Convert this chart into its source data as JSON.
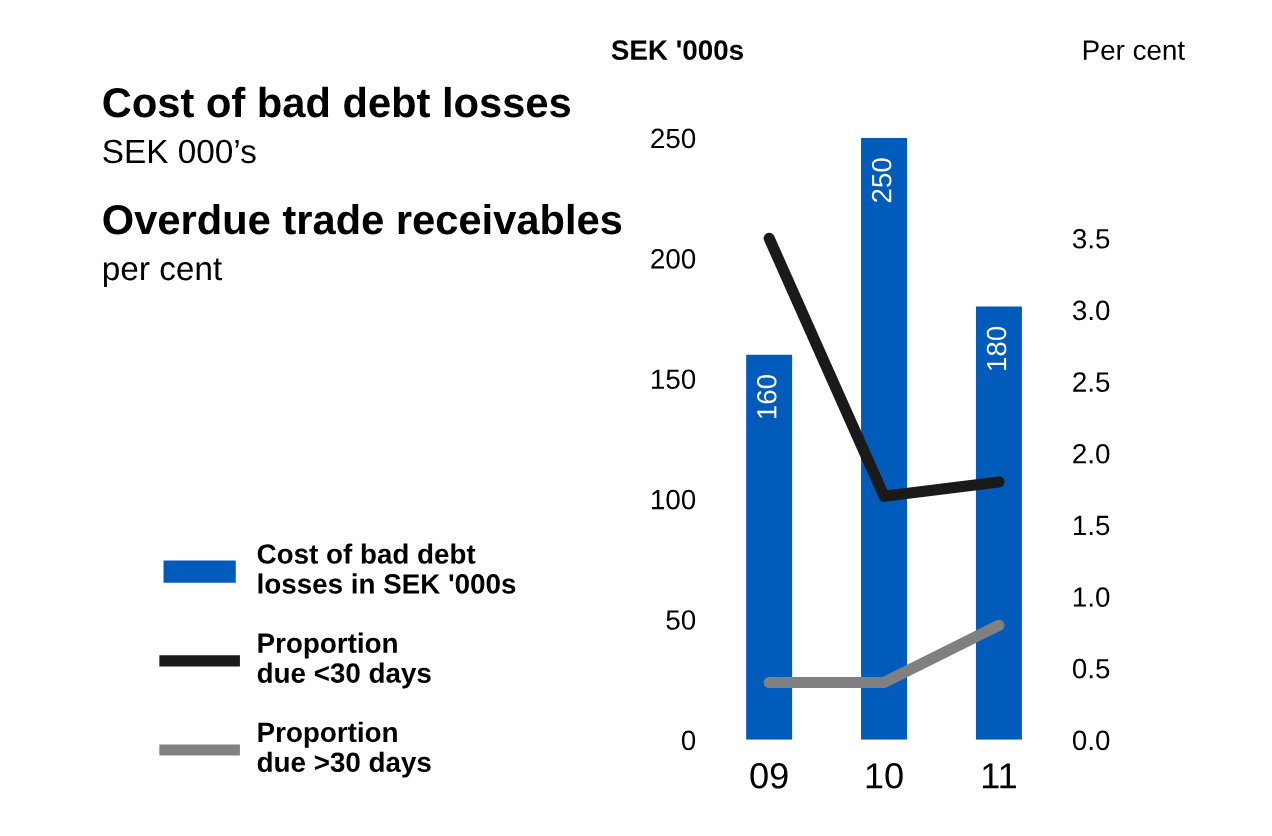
{
  "chart_data": {
    "type": "bar",
    "title": "Cost of bad debt losses",
    "subtitle": "SEK 000’s",
    "annotations": [
      "Overdue trade receivables",
      "per cent"
    ],
    "ylabel": "SEK '000s",
    "y2label": "Per cent",
    "categories": [
      "09",
      "10",
      "11"
    ],
    "series": [
      {
        "name": "Cost of bad debt losses in SEK '000s",
        "color": "#005bbb",
        "values": [
          160,
          250,
          180
        ],
        "value_labels": [
          "160",
          "250",
          "180"
        ]
      },
      {
        "name": "Proportion due <30 days",
        "type": "line",
        "axis": "y2",
        "color": "#1a1a1a",
        "values": [
          3.5,
          1.7,
          1.8
        ]
      },
      {
        "name": "Proportion due >30 days",
        "type": "line",
        "axis": "y2",
        "color": "#808080",
        "values": [
          0.4,
          0.4,
          0.8
        ]
      }
    ],
    "ylim": [
      0,
      250
    ],
    "yticks": [
      0,
      50,
      100,
      150,
      200,
      250
    ],
    "y2lim": [
      0,
      4.2
    ],
    "y2ticks": [
      {
        "value": 0,
        "label": "0.0"
      },
      0.5,
      {
        "value": 1,
        "label": "1.0"
      },
      1.5,
      {
        "value": 2,
        "label": "2.0"
      },
      2.5,
      {
        "value": 3,
        "label": "3.0"
      },
      3.5
    ],
    "grid": false,
    "legend": "left",
    "marker": "none",
    "line_style": "solid"
  }
}
